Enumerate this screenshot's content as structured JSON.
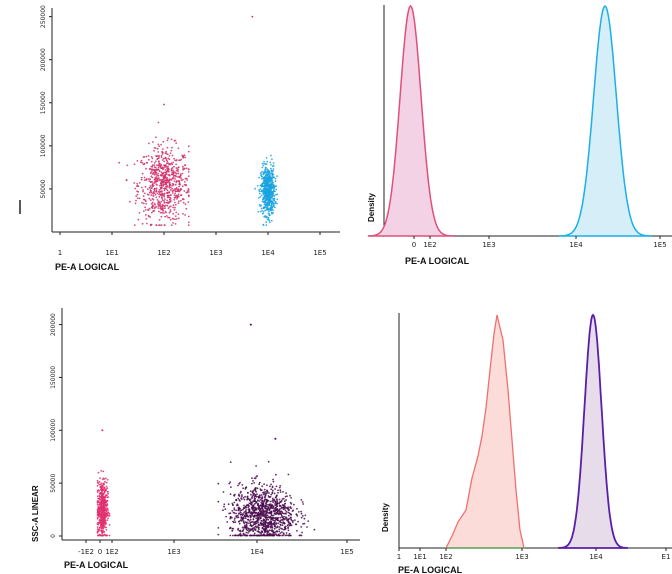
{
  "chart_data": [
    {
      "type": "scatter",
      "panel": "top-left",
      "title": "",
      "xlabel": "PE-A LOGICAL",
      "ylabel": "",
      "x_scale": "log",
      "x_ticks": [
        "1",
        "1E1",
        "1E2",
        "1E3",
        "1E4",
        "1E5"
      ],
      "y_ticks": [
        "50000",
        "100000",
        "150000",
        "200000",
        "250000"
      ],
      "ylim": [
        0,
        260000
      ],
      "grid": false,
      "series": [
        {
          "color": "#d0306a",
          "cluster_center": [
            100,
            55000
          ],
          "spread": [
            0.45,
            22000
          ],
          "count": 700,
          "x_range": [
            10,
            300
          ]
        },
        {
          "color": "#1aa3e0",
          "cluster_center": [
            10000,
            48000
          ],
          "spread": [
            0.12,
            14000
          ],
          "count": 600,
          "x_range": [
            5000,
            20000
          ]
        }
      ],
      "outliers": [
        [
          100,
          148000
        ],
        [
          5000,
          250000
        ]
      ]
    },
    {
      "type": "area",
      "panel": "top-right",
      "title": "",
      "xlabel": "PE-A LOGICAL",
      "ylabel": "Density",
      "x_scale": "log",
      "x_ticks": [
        "0",
        "1E2",
        "1E3",
        "1E4",
        "1E5"
      ],
      "grid": false,
      "series": [
        {
          "color": "#e0507a",
          "fill": "#f4d2e6",
          "peak_x": 60,
          "peak_width_decades": 0.12
        },
        {
          "color": "#1ab0e8",
          "fill": "#d6eef8",
          "peak_x": 10000,
          "peak_width_decades": 0.13
        }
      ]
    },
    {
      "type": "scatter",
      "panel": "bottom-left",
      "title": "",
      "xlabel": "PE-A LOGICAL",
      "ylabel": "SSC-A LINEAR",
      "x_scale": "log",
      "x_ticks": [
        "-1E2",
        "0",
        "1E2",
        "1E3",
        "1E4",
        "1E5"
      ],
      "y_ticks": [
        "0",
        "50000",
        "100000",
        "150000",
        "200000"
      ],
      "ylim": [
        -5000,
        210000
      ],
      "grid": false,
      "series": [
        {
          "color": "#e0306e",
          "cluster_center": [
            20,
            25000
          ],
          "spread": [
            0.1,
            14000
          ],
          "count": 500,
          "x_range": [
            -20,
            80
          ]
        },
        {
          "color": "#4a0a4e",
          "cluster_center": [
            7000,
            20000
          ],
          "spread": [
            0.22,
            14000
          ],
          "count": 1100,
          "x_range": [
            2000,
            30000
          ]
        }
      ],
      "outliers": [
        [
          20,
          100000
        ],
        [
          5000,
          200000
        ],
        [
          10000,
          92000
        ]
      ]
    },
    {
      "type": "area",
      "panel": "bottom-right",
      "title": "",
      "xlabel": "PE-A LOGICAL",
      "ylabel": "Density",
      "x_scale": "log",
      "x_ticks": [
        "1",
        "1E1",
        "1E2",
        "1E3",
        "1E4",
        "E1"
      ],
      "grid": false,
      "series": [
        {
          "color": "#f07070",
          "fill": "#fcdcd8",
          "peak_x": 500,
          "shape": "skewed-left"
        },
        {
          "color": "#5a1ea8",
          "fill": "#e6dcea",
          "peak_x": 8500,
          "peak_width_decades": 0.1
        }
      ]
    }
  ]
}
